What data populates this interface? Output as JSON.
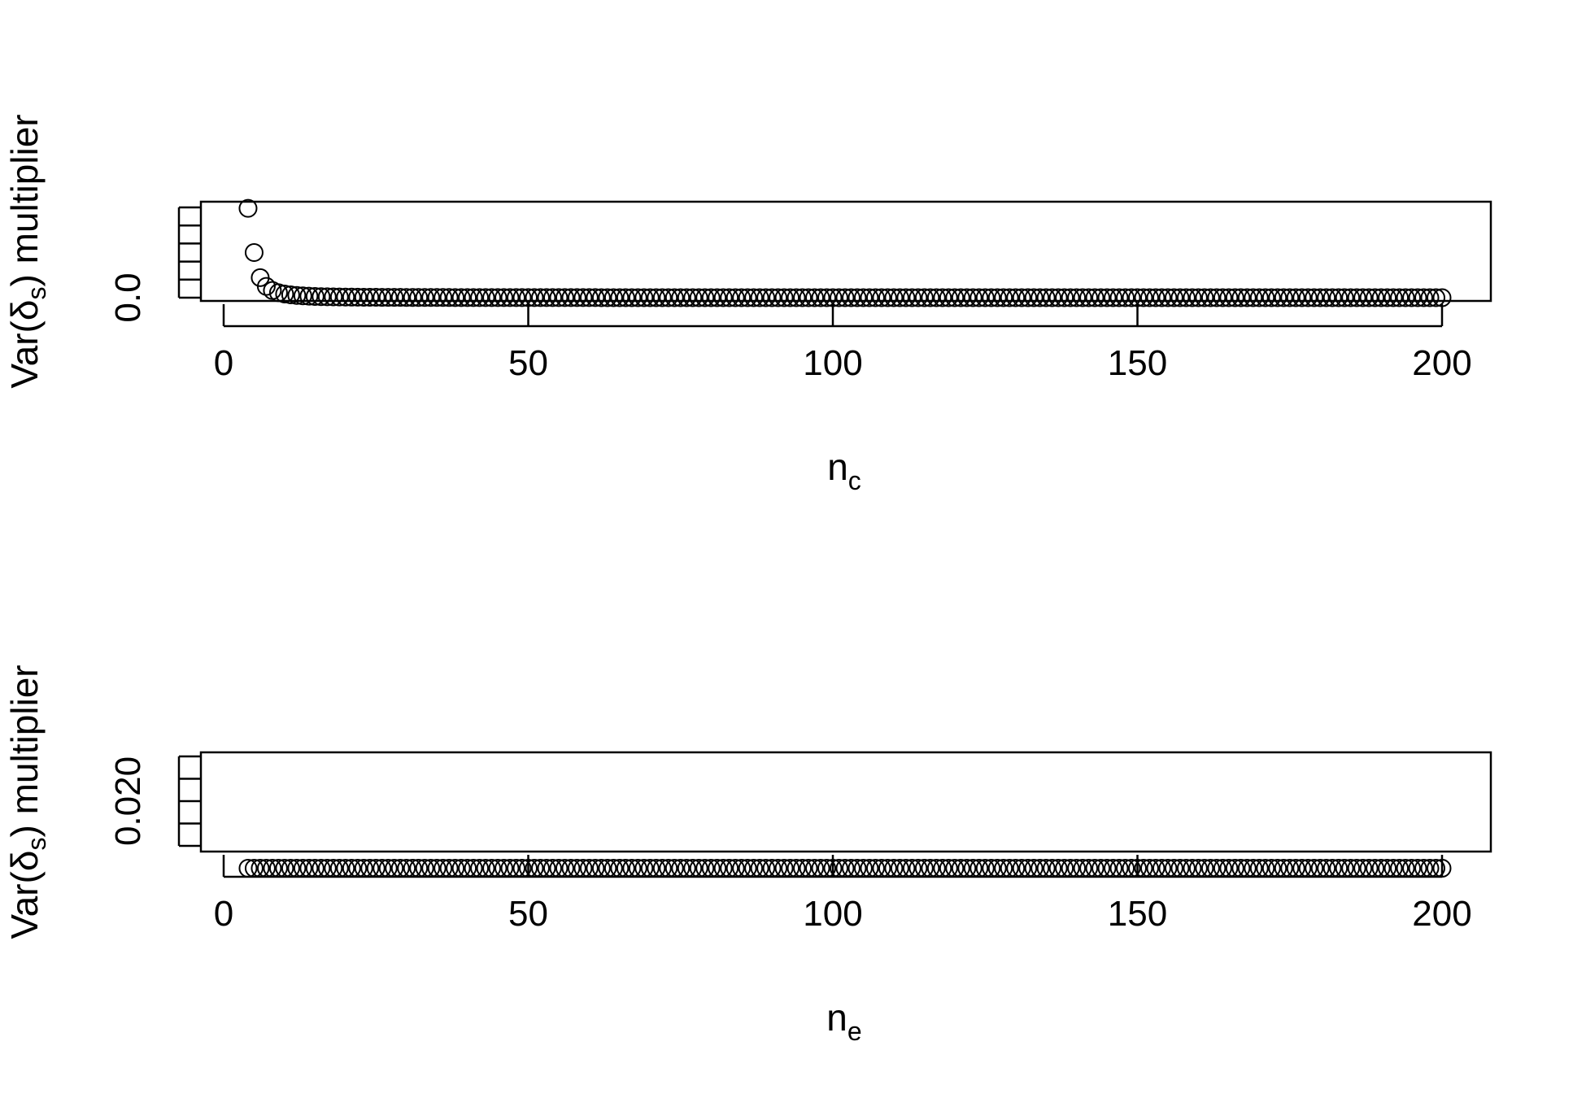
{
  "colors": {
    "foreground": "#000000",
    "background": "#ffffff"
  },
  "chart_data": [
    {
      "type": "scatter",
      "title": "",
      "xlabel": {
        "base": "n",
        "subscript": "c"
      },
      "ylabel": {
        "prefix": "Var(",
        "symbol": "δ",
        "subscript": "s",
        "suffix": ") multiplier"
      },
      "xlim": [
        0,
        200
      ],
      "ylim": [
        0,
        0.5
      ],
      "x_ticks": [
        0,
        50,
        100,
        150,
        200
      ],
      "x_tick_labels": [
        "0",
        "50",
        "100",
        "150",
        "200"
      ],
      "y_ticks": [
        0,
        0.1,
        0.2,
        0.3,
        0.4,
        0.5
      ],
      "y_tick_labels": [
        "0.0",
        "",
        "",
        "",
        "",
        ""
      ],
      "grid": false,
      "marker": "open-circle",
      "x": {
        "from": 4,
        "to": 200,
        "step": 1
      },
      "y_function": "1/(x-3)^2"
    },
    {
      "type": "scatter",
      "title": "",
      "xlabel": {
        "base": "n",
        "subscript": "e"
      },
      "ylabel": {
        "prefix": "Var(",
        "symbol": "δ",
        "subscript": "s",
        "suffix": ") multiplier"
      },
      "xlim": [
        0,
        200
      ],
      "ylim": [
        0.018,
        0.022
      ],
      "x_ticks": [
        0,
        50,
        100,
        150,
        200
      ],
      "x_tick_labels": [
        "0",
        "50",
        "100",
        "150",
        "200"
      ],
      "y_ticks": [
        0.018,
        0.019,
        0.02,
        0.021,
        0.022
      ],
      "y_tick_labels": [
        "",
        "",
        "0.020",
        "",
        ""
      ],
      "grid": false,
      "marker": "open-circle",
      "x": {
        "from": 4,
        "to": 200,
        "step": 1
      },
      "y_constant": 0.02
    }
  ]
}
